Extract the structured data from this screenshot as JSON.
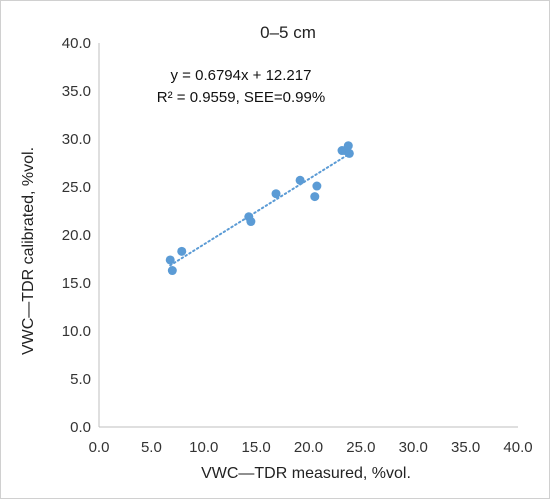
{
  "chart_data": {
    "type": "scatter",
    "title": "0–5 cm",
    "xlabel": "VWC—TDR measured, %vol.",
    "ylabel": "VWC—TDR calibrated, %vol.",
    "xlim": [
      0,
      40
    ],
    "ylim": [
      0,
      40
    ],
    "xticks": [
      "0.0",
      "5.0",
      "10.0",
      "15.0",
      "20.0",
      "25.0",
      "30.0",
      "35.0",
      "40.0"
    ],
    "yticks": [
      "0.0",
      "5.0",
      "10.0",
      "15.0",
      "20.0",
      "25.0",
      "30.0",
      "35.0",
      "40.0"
    ],
    "grid": false,
    "points": [
      {
        "x": 6.8,
        "y": 17.4
      },
      {
        "x": 7.0,
        "y": 16.3
      },
      {
        "x": 7.9,
        "y": 18.3
      },
      {
        "x": 14.3,
        "y": 21.9
      },
      {
        "x": 14.5,
        "y": 21.4
      },
      {
        "x": 16.9,
        "y": 24.3
      },
      {
        "x": 19.2,
        "y": 25.7
      },
      {
        "x": 20.6,
        "y": 24.0
      },
      {
        "x": 20.8,
        "y": 25.1
      },
      {
        "x": 23.2,
        "y": 28.8
      },
      {
        "x": 23.5,
        "y": 28.8
      },
      {
        "x": 23.8,
        "y": 29.3
      },
      {
        "x": 23.9,
        "y": 28.5
      }
    ],
    "trendline": {
      "slope": 0.6794,
      "intercept": 12.217,
      "x_range": [
        6.8,
        23.9
      ]
    },
    "annotations": {
      "equation": "y = 0.6794x + 12.217",
      "stats": "R² = 0.9559, SEE=0.99%"
    },
    "colors": {
      "points": "#5b9bd5",
      "trendline": "#5b9bd5",
      "axes": "#bfbfbf",
      "text": "#333333"
    }
  }
}
